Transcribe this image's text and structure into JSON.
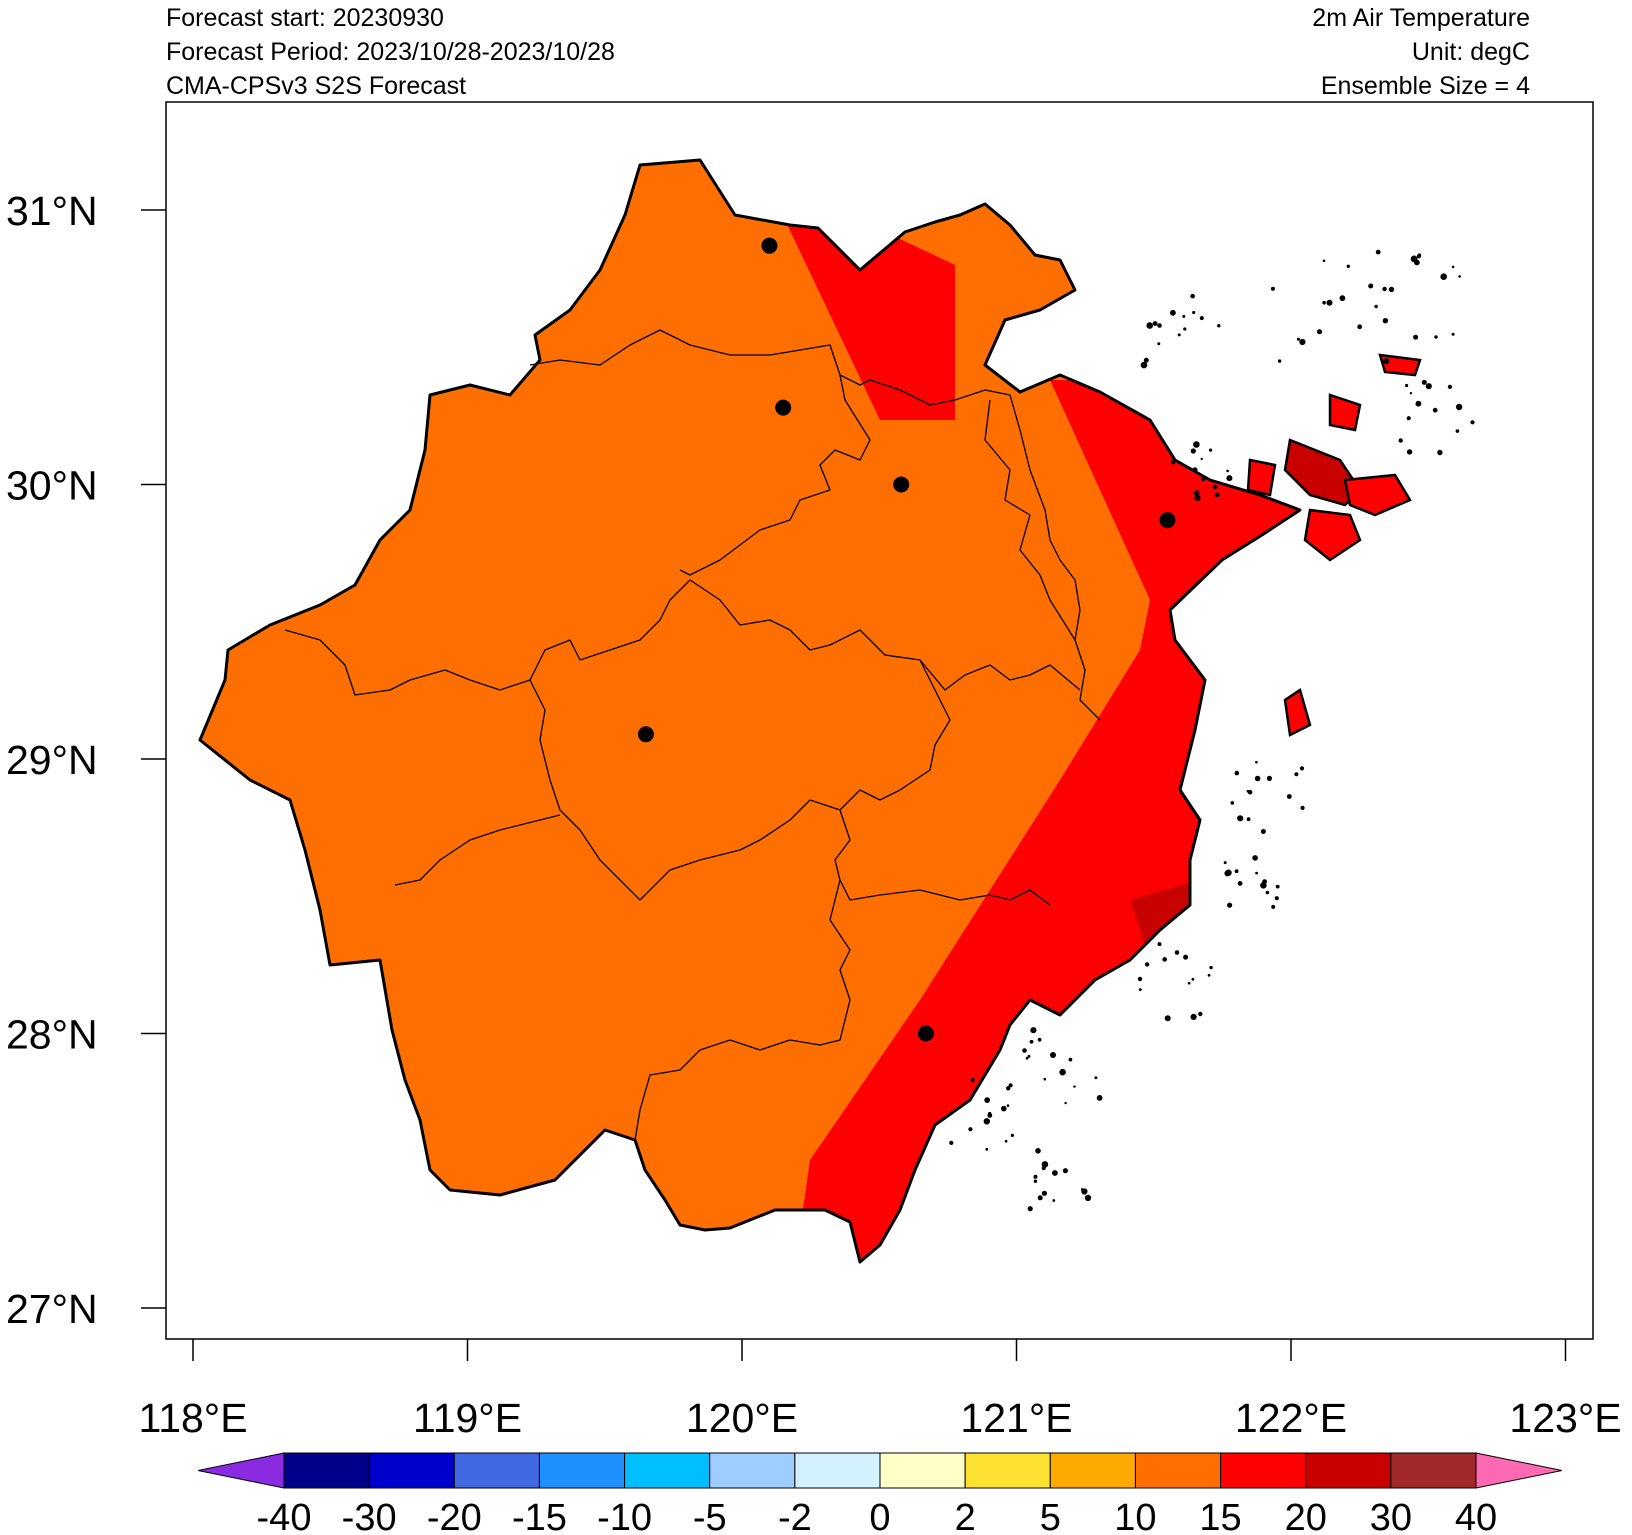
{
  "header": {
    "forecast_start": "Forecast start: 20230930",
    "forecast_period": "Forecast Period: 2023/10/28-2023/10/28",
    "model": "CMA-CPSv3 S2S Forecast",
    "variable": "2m Air Temperature",
    "unit": "Unit: degC",
    "ensemble": "Ensemble Size = 4"
  },
  "map": {
    "lon_range": [
      117.9,
      123.1
    ],
    "lat_range": [
      26.95,
      31.45
    ],
    "lon_ticks": [
      "118°E",
      "119°E",
      "120°E",
      "121°E",
      "122°E",
      "123°E"
    ],
    "lat_ticks": [
      "27°N",
      "28°N",
      "29°N",
      "30°N",
      "31°N"
    ],
    "fill_colors": {
      "band_10_15": "#ff6e00",
      "band_15_20": "#ff0000",
      "band_20_30": "#c80000"
    },
    "city_points": [
      {
        "lon": 120.1,
        "lat": 30.87
      },
      {
        "lon": 120.15,
        "lat": 30.28
      },
      {
        "lon": 120.58,
        "lat": 30.0
      },
      {
        "lon": 121.55,
        "lat": 29.87
      },
      {
        "lon": 119.65,
        "lat": 29.09
      },
      {
        "lon": 120.67,
        "lat": 28.0
      }
    ]
  },
  "colorbar": {
    "labels": [
      "-40",
      "-30",
      "-20",
      "-15",
      "-10",
      "-5",
      "-2",
      "0",
      "2",
      "5",
      "10",
      "15",
      "20",
      "30",
      "40"
    ],
    "colors": [
      "#8a2be2",
      "#00008b",
      "#0000cd",
      "#4169e1",
      "#1e90ff",
      "#00bfff",
      "#a0cdff",
      "#d2f0ff",
      "#ffffc8",
      "#ffe132",
      "#ffaa00",
      "#ff6e00",
      "#ff0000",
      "#c80000",
      "#a02828",
      "#ff69b4"
    ]
  }
}
